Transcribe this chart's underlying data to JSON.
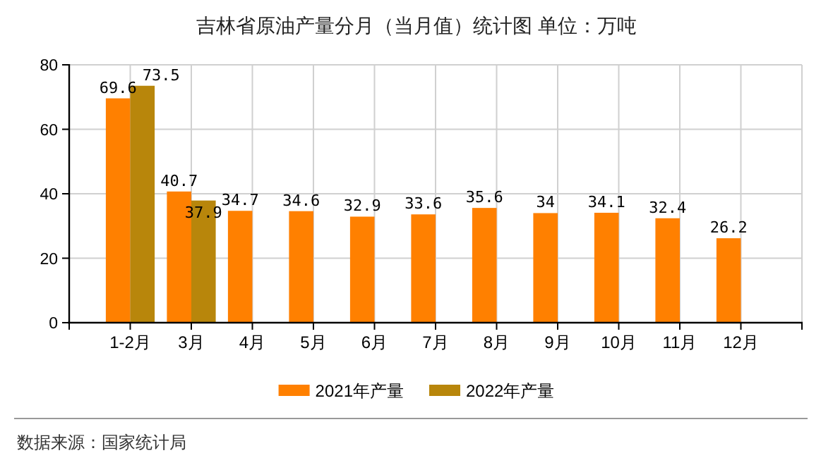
{
  "chart_data": {
    "type": "bar",
    "title": "吉林省原油产量分月（当月值）统计图 单位：万吨",
    "categories": [
      "1-2月",
      "3月",
      "4月",
      "5月",
      "6月",
      "7月",
      "8月",
      "9月",
      "10月",
      "11月",
      "12月"
    ],
    "series": [
      {
        "name": "2021年产量",
        "color": "#ff8000",
        "values": [
          69.6,
          40.7,
          34.7,
          34.6,
          32.9,
          33.6,
          35.6,
          34,
          34.1,
          32.4,
          26.2
        ]
      },
      {
        "name": "2022年产量",
        "color": "#b8860b",
        "values": [
          73.5,
          37.9,
          null,
          null,
          null,
          null,
          null,
          null,
          null,
          null,
          null
        ]
      }
    ],
    "ylim": [
      0,
      80
    ],
    "yticks": [
      0,
      20,
      40,
      60,
      80
    ],
    "grid": true,
    "legend": "bottom",
    "data_labels": true,
    "annotations": [
      "数据来源：国家统计局"
    ]
  }
}
